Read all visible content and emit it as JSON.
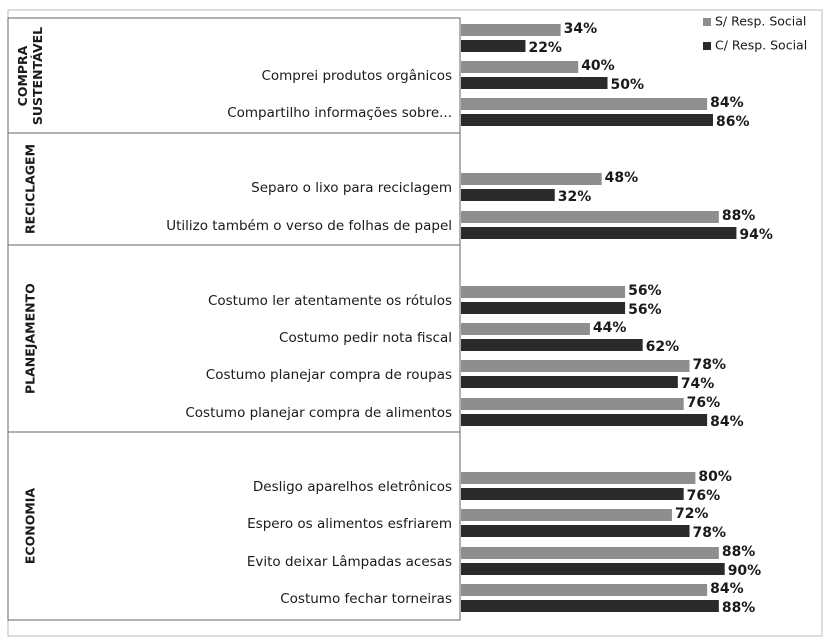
{
  "chart_data": {
    "type": "bar",
    "orientation": "horizontal",
    "groups": [
      {
        "label": "COMPRA SUSTENTÁVEL",
        "categories": [
          null,
          "Comprei produtos orgânicos",
          "Compartilho informações sobre..."
        ]
      },
      {
        "label": "RECICLAGEM",
        "categories": [
          "Separo o lixo para reciclagem",
          "Utilizo também o verso de folhas de papel"
        ]
      },
      {
        "label": "PLANEJAMENTO",
        "categories": [
          "Costumo ler atentamente os rótulos",
          "Costumo pedir nota fiscal",
          "Costumo planejar compra de roupas",
          "Costumo planejar compra de alimentos"
        ]
      },
      {
        "label": "ECONOMIA",
        "categories": [
          "Desligo aparelhos eletrônicos",
          "Espero os alimentos esfriarem",
          "Evito deixar Lâmpadas acesas",
          "Costumo fechar torneiras"
        ]
      }
    ],
    "series": [
      {
        "name": "S/ Resp. Social",
        "color": "#8e8e8e",
        "values": [
          34,
          40,
          84,
          48,
          88,
          56,
          44,
          78,
          76,
          80,
          72,
          88,
          84
        ],
        "value_labels": [
          "34%",
          "40%",
          "84%",
          "48%",
          "88%",
          "56%",
          "44%",
          "78%",
          "76%",
          "80%",
          "72%",
          "88%",
          "84%"
        ]
      },
      {
        "name": "C/ Resp. Social",
        "color": "#2a2a2a",
        "values": [
          22,
          50,
          86,
          32,
          94,
          56,
          62,
          74,
          84,
          76,
          78,
          90,
          88
        ],
        "value_labels": [
          "22%",
          "50%",
          "86%",
          "32%",
          "94%",
          "56%",
          "62%",
          "74%",
          "84%",
          "76%",
          "78%",
          "90%",
          "88%"
        ]
      }
    ],
    "xlim": [
      0,
      100
    ],
    "legend": "top-right"
  }
}
